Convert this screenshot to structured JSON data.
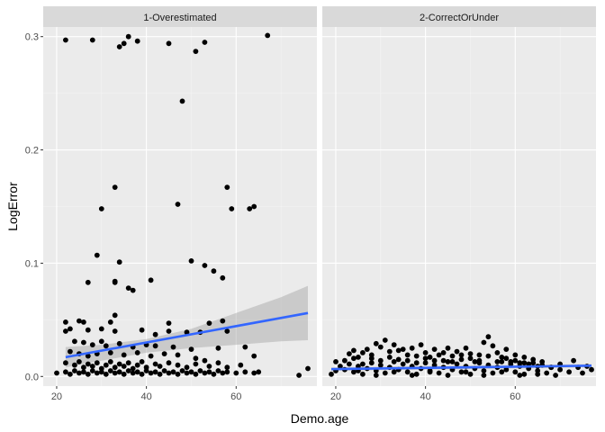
{
  "chart_data": {
    "type": "scatter",
    "xlabel": "Demo.age",
    "ylabel": "LogError",
    "xlim": [
      17,
      78
    ],
    "ylim": [
      -0.0085,
      0.3085
    ],
    "x_ticks": [
      20,
      40,
      60
    ],
    "y_ticks": [
      0.0,
      0.1,
      0.2,
      0.3
    ],
    "x_tick_labels": [
      "20",
      "40",
      "60"
    ],
    "y_tick_labels": [
      "0.0",
      "0.1",
      "0.2",
      "0.3"
    ],
    "grid": true,
    "colors": {
      "panel_bg": "#ebebeb",
      "strip_bg": "#d9d9d9",
      "grid_major": "#ffffff",
      "point": "#000000",
      "trend_line": "#3366ff",
      "ci_band": "#999999"
    },
    "panels": [
      {
        "title": "1-Overestimated",
        "trend": {
          "x": [
            22,
            76
          ],
          "y": [
            0.017,
            0.056
          ]
        },
        "ci_band": {
          "x": [
            22,
            30,
            40,
            50,
            60,
            70,
            76
          ],
          "lower": [
            0.008,
            0.014,
            0.021,
            0.025,
            0.028,
            0.031,
            0.032
          ],
          "upper": [
            0.026,
            0.028,
            0.033,
            0.042,
            0.056,
            0.07,
            0.08
          ]
        },
        "points": [
          [
            22,
            0.297
          ],
          [
            28,
            0.297
          ],
          [
            34,
            0.291
          ],
          [
            35,
            0.294
          ],
          [
            36,
            0.3
          ],
          [
            38,
            0.296
          ],
          [
            45,
            0.294
          ],
          [
            51,
            0.287
          ],
          [
            53,
            0.295
          ],
          [
            67,
            0.301
          ],
          [
            48,
            0.243
          ],
          [
            33,
            0.167
          ],
          [
            58,
            0.167
          ],
          [
            47,
            0.152
          ],
          [
            30,
            0.148
          ],
          [
            59,
            0.148
          ],
          [
            63,
            0.148
          ],
          [
            64,
            0.15
          ],
          [
            29,
            0.107
          ],
          [
            34,
            0.101
          ],
          [
            50,
            0.102
          ],
          [
            53,
            0.098
          ],
          [
            55,
            0.093
          ],
          [
            57,
            0.087
          ],
          [
            41,
            0.085
          ],
          [
            33,
            0.084
          ],
          [
            33,
            0.083
          ],
          [
            36,
            0.078
          ],
          [
            37,
            0.076
          ],
          [
            27,
            0.083
          ],
          [
            33,
            0.054
          ],
          [
            22,
            0.048
          ],
          [
            25,
            0.049
          ],
          [
            26,
            0.048
          ],
          [
            32,
            0.048
          ],
          [
            45,
            0.047
          ],
          [
            54,
            0.047
          ],
          [
            57,
            0.049
          ],
          [
            22,
            0.04
          ],
          [
            23,
            0.042
          ],
          [
            27,
            0.041
          ],
          [
            30,
            0.042
          ],
          [
            33,
            0.04
          ],
          [
            39,
            0.041
          ],
          [
            42,
            0.037
          ],
          [
            45,
            0.04
          ],
          [
            49,
            0.039
          ],
          [
            52,
            0.039
          ],
          [
            58,
            0.04
          ],
          [
            24,
            0.031
          ],
          [
            26,
            0.03
          ],
          [
            28,
            0.028
          ],
          [
            30,
            0.031
          ],
          [
            31,
            0.027
          ],
          [
            34,
            0.029
          ],
          [
            37,
            0.026
          ],
          [
            40,
            0.028
          ],
          [
            42,
            0.027
          ],
          [
            46,
            0.026
          ],
          [
            50,
            0.024
          ],
          [
            56,
            0.025
          ],
          [
            62,
            0.026
          ],
          [
            23,
            0.022
          ],
          [
            25,
            0.02
          ],
          [
            27,
            0.018
          ],
          [
            29,
            0.02
          ],
          [
            32,
            0.021
          ],
          [
            35,
            0.019
          ],
          [
            38,
            0.021
          ],
          [
            41,
            0.018
          ],
          [
            44,
            0.02
          ],
          [
            47,
            0.019
          ],
          [
            51,
            0.016
          ],
          [
            53,
            0.014
          ],
          [
            64,
            0.018
          ],
          [
            22,
            0.012
          ],
          [
            24,
            0.01
          ],
          [
            25,
            0.013
          ],
          [
            26,
            0.008
          ],
          [
            27,
            0.011
          ],
          [
            28,
            0.009
          ],
          [
            29,
            0.012
          ],
          [
            30,
            0.007
          ],
          [
            31,
            0.01
          ],
          [
            32,
            0.013
          ],
          [
            33,
            0.008
          ],
          [
            34,
            0.011
          ],
          [
            35,
            0.009
          ],
          [
            36,
            0.012
          ],
          [
            37,
            0.007
          ],
          [
            38,
            0.01
          ],
          [
            39,
            0.013
          ],
          [
            40,
            0.008
          ],
          [
            42,
            0.011
          ],
          [
            43,
            0.009
          ],
          [
            45,
            0.012
          ],
          [
            47,
            0.01
          ],
          [
            49,
            0.008
          ],
          [
            51,
            0.011
          ],
          [
            54,
            0.009
          ],
          [
            56,
            0.012
          ],
          [
            58,
            0.008
          ],
          [
            61,
            0.01
          ],
          [
            20,
            0.003
          ],
          [
            22,
            0.004
          ],
          [
            23,
            0.002
          ],
          [
            24,
            0.005
          ],
          [
            25,
            0.003
          ],
          [
            26,
            0.004
          ],
          [
            27,
            0.002
          ],
          [
            28,
            0.005
          ],
          [
            29,
            0.003
          ],
          [
            30,
            0.004
          ],
          [
            31,
            0.002
          ],
          [
            32,
            0.005
          ],
          [
            33,
            0.003
          ],
          [
            34,
            0.004
          ],
          [
            35,
            0.002
          ],
          [
            36,
            0.005
          ],
          [
            37,
            0.003
          ],
          [
            38,
            0.004
          ],
          [
            39,
            0.002
          ],
          [
            40,
            0.005
          ],
          [
            41,
            0.003
          ],
          [
            42,
            0.004
          ],
          [
            43,
            0.002
          ],
          [
            44,
            0.005
          ],
          [
            45,
            0.003
          ],
          [
            46,
            0.004
          ],
          [
            47,
            0.002
          ],
          [
            48,
            0.005
          ],
          [
            49,
            0.003
          ],
          [
            50,
            0.004
          ],
          [
            51,
            0.002
          ],
          [
            52,
            0.005
          ],
          [
            53,
            0.003
          ],
          [
            54,
            0.004
          ],
          [
            55,
            0.002
          ],
          [
            56,
            0.005
          ],
          [
            57,
            0.003
          ],
          [
            58,
            0.004
          ],
          [
            60,
            0.003
          ],
          [
            62,
            0.004
          ],
          [
            64,
            0.003
          ],
          [
            65,
            0.004
          ],
          [
            74,
            0.001
          ],
          [
            76,
            0.007
          ]
        ]
      },
      {
        "title": "2-CorrectOrUnder",
        "trend": {
          "x": [
            19,
            77
          ],
          "y": [
            0.0065,
            0.0095
          ]
        },
        "ci_band": {
          "x": [
            19,
            77
          ],
          "lower": [
            0.005,
            0.008
          ],
          "upper": [
            0.008,
            0.011
          ]
        },
        "points": [
          [
            19,
            0.002
          ],
          [
            20,
            0.005
          ],
          [
            21,
            0.009
          ],
          [
            22,
            0.014
          ],
          [
            23,
            0.02
          ],
          [
            24,
            0.023
          ],
          [
            25,
            0.017
          ],
          [
            26,
            0.011
          ],
          [
            27,
            0.024
          ],
          [
            28,
            0.019
          ],
          [
            29,
            0.029
          ],
          [
            30,
            0.026
          ],
          [
            31,
            0.032
          ],
          [
            32,
            0.022
          ],
          [
            33,
            0.028
          ],
          [
            34,
            0.015
          ],
          [
            35,
            0.024
          ],
          [
            36,
            0.019
          ],
          [
            37,
            0.025
          ],
          [
            38,
            0.012
          ],
          [
            39,
            0.028
          ],
          [
            40,
            0.021
          ],
          [
            41,
            0.017
          ],
          [
            42,
            0.024
          ],
          [
            43,
            0.019
          ],
          [
            44,
            0.014
          ],
          [
            45,
            0.025
          ],
          [
            46,
            0.018
          ],
          [
            47,
            0.022
          ],
          [
            48,
            0.015
          ],
          [
            49,
            0.025
          ],
          [
            50,
            0.02
          ],
          [
            51,
            0.013
          ],
          [
            52,
            0.019
          ],
          [
            53,
            0.03
          ],
          [
            54,
            0.035
          ],
          [
            55,
            0.027
          ],
          [
            56,
            0.021
          ],
          [
            57,
            0.017
          ],
          [
            58,
            0.024
          ],
          [
            59,
            0.013
          ],
          [
            60,
            0.019
          ],
          [
            61,
            0.012
          ],
          [
            62,
            0.017
          ],
          [
            63,
            0.011
          ],
          [
            64,
            0.015
          ],
          [
            65,
            0.009
          ],
          [
            66,
            0.013
          ],
          [
            68,
            0.008
          ],
          [
            70,
            0.011
          ],
          [
            73,
            0.014
          ],
          [
            76,
            0.009
          ],
          [
            20,
            0.013
          ],
          [
            22,
            0.006
          ],
          [
            23,
            0.011
          ],
          [
            24,
            0.004
          ],
          [
            25,
            0.009
          ],
          [
            26,
            0.002
          ],
          [
            27,
            0.007
          ],
          [
            28,
            0.012
          ],
          [
            29,
            0.005
          ],
          [
            30,
            0.01
          ],
          [
            31,
            0.003
          ],
          [
            32,
            0.008
          ],
          [
            33,
            0.013
          ],
          [
            34,
            0.006
          ],
          [
            35,
            0.011
          ],
          [
            36,
            0.004
          ],
          [
            37,
            0.009
          ],
          [
            38,
            0.002
          ],
          [
            39,
            0.007
          ],
          [
            40,
            0.012
          ],
          [
            41,
            0.005
          ],
          [
            42,
            0.01
          ],
          [
            43,
            0.003
          ],
          [
            44,
            0.008
          ],
          [
            45,
            0.013
          ],
          [
            46,
            0.006
          ],
          [
            47,
            0.011
          ],
          [
            48,
            0.004
          ],
          [
            49,
            0.009
          ],
          [
            50,
            0.002
          ],
          [
            51,
            0.007
          ],
          [
            52,
            0.012
          ],
          [
            53,
            0.005
          ],
          [
            54,
            0.01
          ],
          [
            55,
            0.003
          ],
          [
            56,
            0.008
          ],
          [
            57,
            0.013
          ],
          [
            58,
            0.006
          ],
          [
            59,
            0.011
          ],
          [
            60,
            0.004
          ],
          [
            61,
            0.009
          ],
          [
            62,
            0.002
          ],
          [
            63,
            0.007
          ],
          [
            64,
            0.012
          ],
          [
            65,
            0.005
          ],
          [
            66,
            0.01
          ],
          [
            67,
            0.003
          ],
          [
            68,
            0.008
          ],
          [
            70,
            0.006
          ],
          [
            72,
            0.004
          ],
          [
            74,
            0.008
          ],
          [
            75,
            0.003
          ],
          [
            77,
            0.006
          ],
          [
            24,
            0.016
          ],
          [
            26,
            0.021
          ],
          [
            28,
            0.016
          ],
          [
            30,
            0.014
          ],
          [
            32,
            0.017
          ],
          [
            34,
            0.023
          ],
          [
            36,
            0.014
          ],
          [
            38,
            0.018
          ],
          [
            40,
            0.016
          ],
          [
            42,
            0.014
          ],
          [
            44,
            0.021
          ],
          [
            46,
            0.013
          ],
          [
            48,
            0.019
          ],
          [
            50,
            0.016
          ],
          [
            52,
            0.014
          ],
          [
            54,
            0.018
          ],
          [
            56,
            0.013
          ],
          [
            58,
            0.016
          ],
          [
            60,
            0.014
          ],
          [
            62,
            0.012
          ],
          [
            25,
            0.005
          ],
          [
            29,
            0.001
          ],
          [
            33,
            0.004
          ],
          [
            37,
            0.001
          ],
          [
            41,
            0.004
          ],
          [
            45,
            0.001
          ],
          [
            49,
            0.004
          ],
          [
            53,
            0.001
          ],
          [
            57,
            0.004
          ],
          [
            61,
            0.001
          ],
          [
            65,
            0.002
          ],
          [
            69,
            0.001
          ]
        ]
      }
    ]
  }
}
